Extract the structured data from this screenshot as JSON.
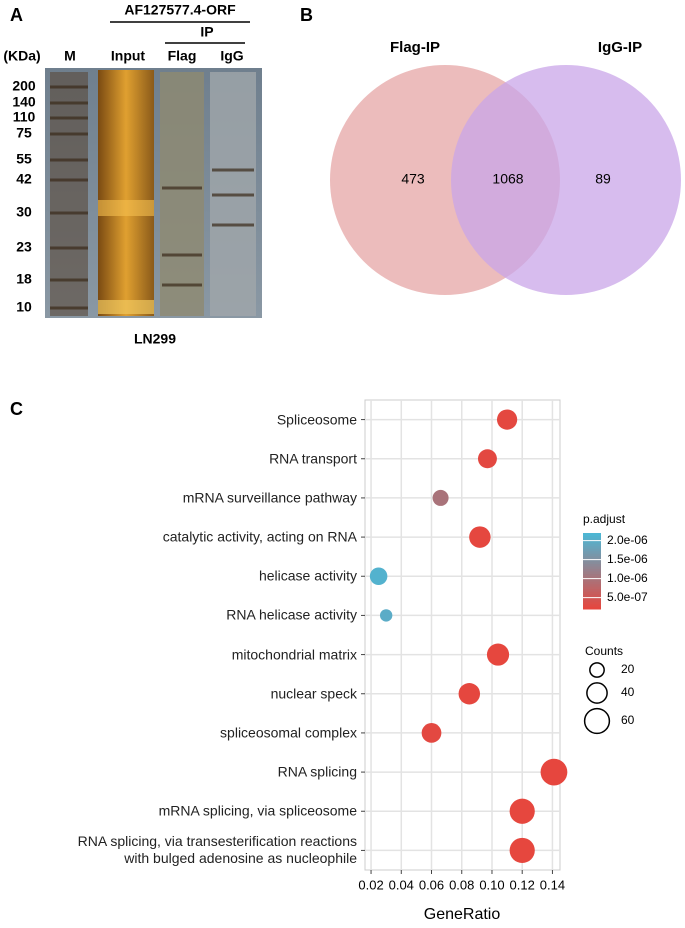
{
  "panel_labels": [
    "A",
    "B",
    "C"
  ],
  "gel": {
    "header": "AF127577.4-ORF",
    "ip": "IP",
    "unit": "(KDa)",
    "lanes": [
      "M",
      "Input",
      "Flag",
      "IgG"
    ],
    "markers": [
      "200",
      "140",
      "110",
      "75",
      "55",
      "42",
      "30",
      "23",
      "18",
      "10"
    ],
    "cell_line": "LN299"
  },
  "chart_data": [
    {
      "type": "venn",
      "sets": [
        {
          "name": "Flag-IP",
          "color": "#e6a6a6"
        },
        {
          "name": "IgG-IP",
          "color": "#c9a6e8"
        }
      ],
      "values": [
        473,
        1068,
        89
      ]
    },
    {
      "type": "dot",
      "categories": [
        "Spliceosome",
        "RNA transport",
        "mRNA surveillance pathway",
        "catalytic activity, acting on RNA",
        "helicase activity",
        "RNA helicase activity",
        "mitochondrial matrix",
        "nuclear speck",
        "spliceosomal complex",
        "RNA splicing",
        "mRNA splicing, via spliceosome",
        "RNA splicing, via transesterification reactions\nwith bulged adenosine as nucleophile"
      ],
      "values": [
        0.11,
        0.097,
        0.066,
        0.092,
        0.025,
        0.03,
        0.104,
        0.085,
        0.06,
        0.141,
        0.12,
        0.12
      ],
      "counts": [
        40,
        35,
        25,
        45,
        30,
        15,
        48,
        45,
        38,
        70,
        62,
        62
      ],
      "p_adjust": [
        2.5e-07,
        2.6e-07,
        1e-06,
        2.4e-07,
        2.1e-06,
        2e-06,
        2.3e-07,
        2.4e-07,
        2.6e-07,
        2.2e-07,
        2.3e-07,
        2.3e-07
      ],
      "xlabel": "GeneRatio",
      "xlim": [
        0.016,
        0.145
      ],
      "xticks": [
        0.02,
        0.04,
        0.06,
        0.08,
        {
          "value": 0.1,
          "label": "0.10"
        },
        0.12,
        0.14
      ],
      "grid": true,
      "color_title": "p.adjust",
      "color_lim": [
        2e-07,
        2.2e-06
      ],
      "colors": [
        "#e8453c",
        "#4bb8d6"
      ],
      "color_ticks": [
        {
          "value": 2e-06,
          "label": "2.0e-06"
        },
        {
          "value": 1.5e-06,
          "label": "1.5e-06"
        },
        {
          "value": 1e-06,
          "label": "1.0e-06"
        },
        {
          "value": 5e-07,
          "label": "5.0e-07"
        }
      ],
      "size_title": "Counts",
      "size_ticks": [
        20,
        40,
        60
      ]
    }
  ]
}
